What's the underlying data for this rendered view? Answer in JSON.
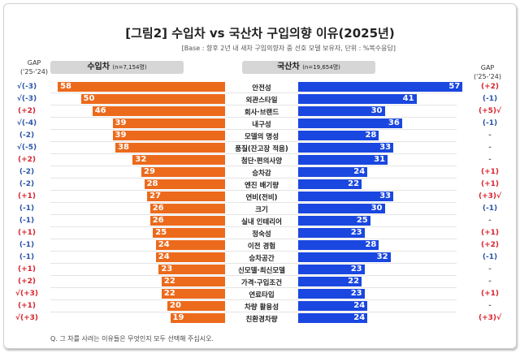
{
  "chart_data": {
    "type": "bar",
    "orientation": "horizontal-butterfly",
    "title": "[그림2] 수입차 vs 국산차 구입의향 이유(2025년)",
    "subtitle": "[Base : 향후 2년 내 새차 구입의향자 중 선호 모델 보유자, 단위 : %복수응답]",
    "gap_header": "GAP",
    "gap_header_sub": "('25-'24)",
    "note": "Q. 그 차를 사려는 이유들은 무엇인지 모두 선택해 주십시오.",
    "categories": [
      "안전성",
      "외관스타일",
      "회사·브랜드",
      "내구성",
      "모델의 명성",
      "품질(잔고장 적음)",
      "첨단·편의사양",
      "승차감",
      "엔진 배기량",
      "연비(전비)",
      "크기",
      "실내 인테리어",
      "정숙성",
      "이전 경험",
      "승차공간",
      "신모델·최신모델",
      "가격·구입조건",
      "연료타입",
      "차량 활용성",
      "친환경차량"
    ],
    "series": [
      {
        "name": "수입차",
        "sample": "(n=7,154명)",
        "color": "#ec6a1c",
        "values": [
          58,
          50,
          46,
          39,
          39,
          38,
          32,
          29,
          28,
          27,
          26,
          26,
          25,
          24,
          24,
          23,
          22,
          22,
          20,
          19
        ],
        "gap": [
          "(-3)",
          "(-3)",
          "(+2)",
          "(-4)",
          "(-2)",
          "(-5)",
          "(+2)",
          "(-2)",
          "(-2)",
          "(+1)",
          "(-1)",
          "(-1)",
          "(+1)",
          "(-1)",
          "(-1)",
          "(+1)",
          "(+2)",
          "(+3)",
          "(+1)",
          "(+3)"
        ],
        "gap_check": [
          true,
          true,
          false,
          true,
          false,
          true,
          false,
          false,
          false,
          false,
          false,
          false,
          false,
          false,
          false,
          false,
          false,
          true,
          false,
          true
        ]
      },
      {
        "name": "국산차",
        "sample": "(n=19,654명)",
        "color": "#1a47e0",
        "values": [
          57,
          41,
          30,
          36,
          28,
          33,
          31,
          24,
          22,
          33,
          30,
          25,
          23,
          28,
          32,
          23,
          22,
          23,
          24,
          24
        ],
        "gap": [
          "(+2)",
          "(-1)",
          "(+5)",
          "(-1)",
          "-",
          "-",
          "-",
          "(+1)",
          "(+1)",
          "(+3)",
          "(-1)",
          "-",
          "(+1)",
          "(+2)",
          "(-1)",
          "-",
          "-",
          "(+1)",
          "-",
          "(+3)"
        ],
        "gap_check": [
          false,
          false,
          true,
          false,
          false,
          false,
          false,
          false,
          false,
          true,
          false,
          false,
          false,
          false,
          false,
          false,
          false,
          false,
          false,
          true
        ]
      }
    ],
    "check_mark": "√",
    "colors": {
      "positive_gap": "#d9232d",
      "negative_gap": "#2b55a8",
      "neutral_gap": "#777777"
    }
  }
}
